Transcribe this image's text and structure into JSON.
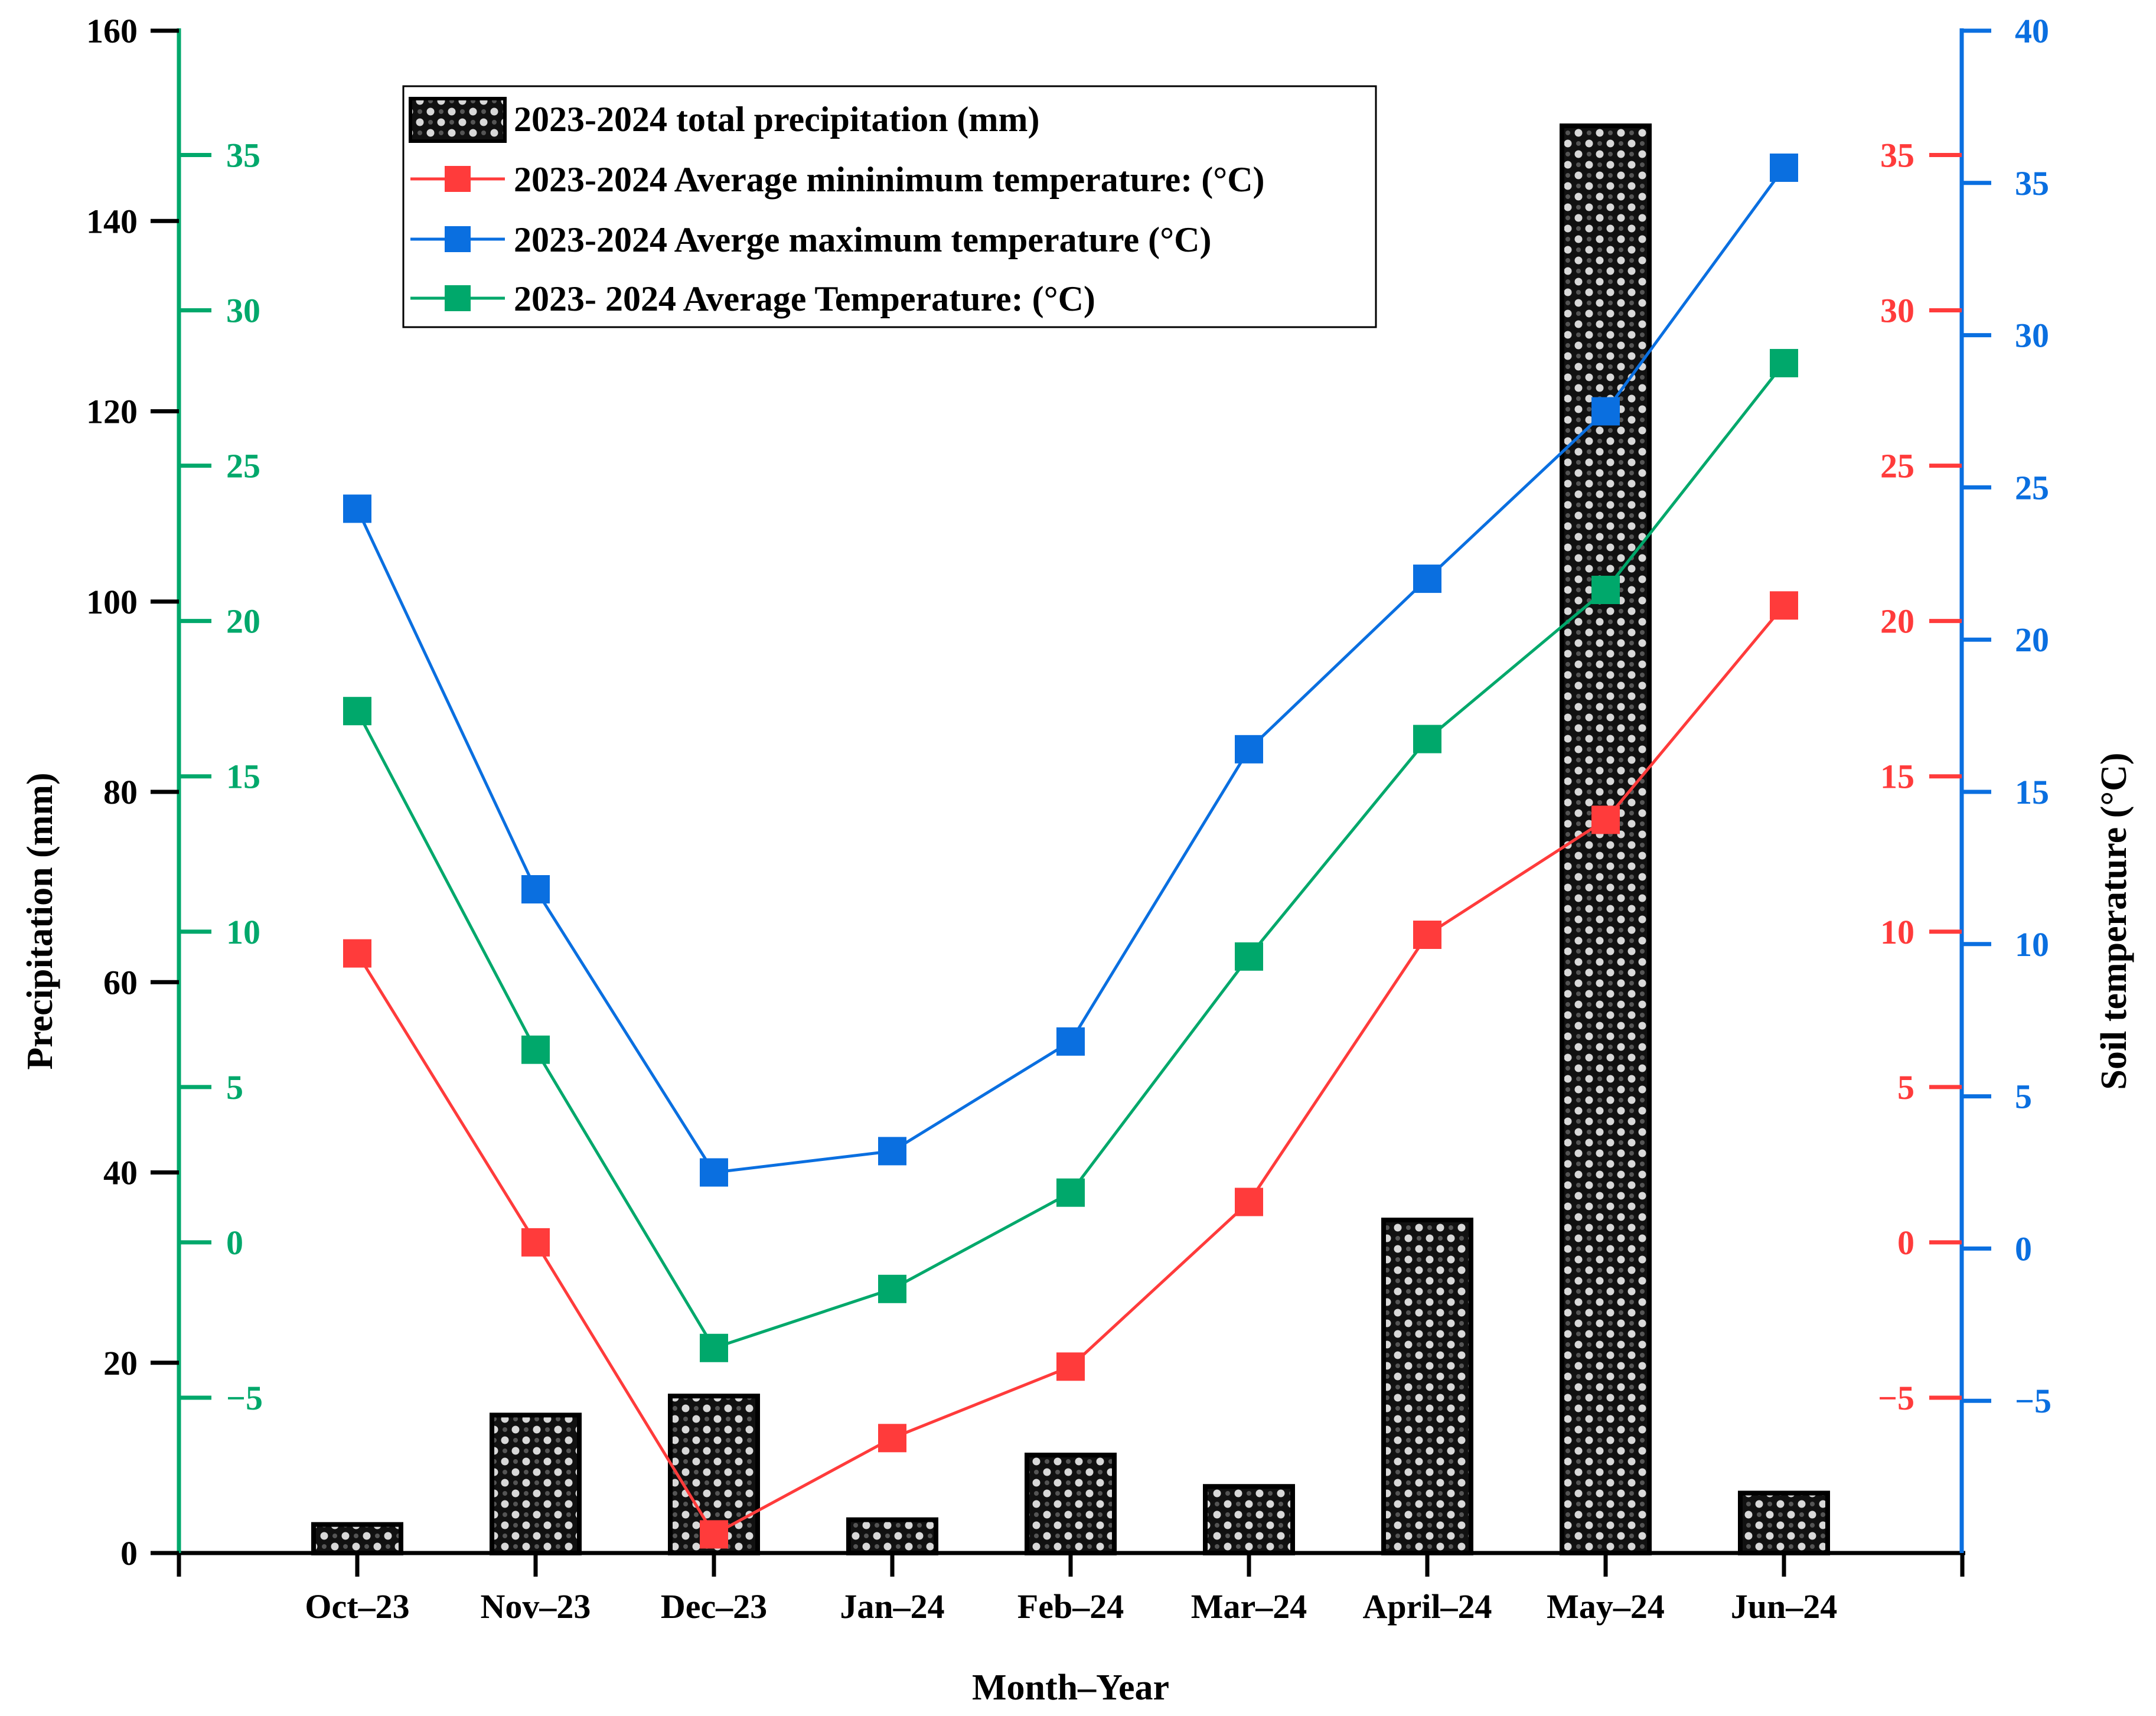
{
  "chart_data": {
    "type": "bar",
    "categories": [
      "Oct–23",
      "Nov–23",
      "Dec–23",
      "Jan–24",
      "Feb–24",
      "Mar–24",
      "April–24",
      "May–24",
      "Jun–24"
    ],
    "xlabel": "Month–Year",
    "ylabel_left": "Precipitation (mm)",
    "ylabel_right": "Soil temperature (°C)",
    "precip_axis": {
      "min": 0,
      "max": 160,
      "ticks": [
        "0",
        "20",
        "40",
        "60",
        "80",
        "100",
        "120",
        "140",
        "160"
      ],
      "color": "#000000"
    },
    "green_axis": {
      "min": -10,
      "max": 39,
      "ticks": [
        "−5",
        "0",
        "5",
        "10",
        "15",
        "20",
        "25",
        "30",
        "35"
      ],
      "tick_values": [
        -5,
        0,
        5,
        10,
        15,
        20,
        25,
        30,
        35
      ],
      "color": "#00a86b"
    },
    "red_axis": {
      "min": -10,
      "max": 39,
      "ticks": [
        "−5",
        "0",
        "5",
        "10",
        "15",
        "20",
        "25",
        "30",
        "35"
      ],
      "tick_values": [
        -5,
        0,
        5,
        10,
        15,
        20,
        25,
        30,
        35
      ],
      "color": "#ff3b3b"
    },
    "blue_axis": {
      "min": -10,
      "max": 40,
      "ticks": [
        "−5",
        "0",
        "5",
        "10",
        "15",
        "20",
        "25",
        "30",
        "35",
        "40"
      ],
      "tick_values": [
        -5,
        0,
        5,
        10,
        15,
        20,
        25,
        30,
        35,
        40
      ],
      "color": "#0a6fe0"
    },
    "bars": {
      "name": "2023-2024 total precipitation (mm)",
      "axis": "precip",
      "values": [
        3,
        14.5,
        16.5,
        3.5,
        10.3,
        7,
        35,
        150,
        6.3
      ]
    },
    "series": [
      {
        "name": "2023-2024 Average mininimum temperature: (°C)",
        "axis": "red",
        "color": "#ff3b3b",
        "values": [
          9.3,
          0,
          -9.4,
          -6.3,
          -4.0,
          1.3,
          9.9,
          13.6,
          20.5
        ]
      },
      {
        "name": "2023-2024 Averge maximum temperature (°C)",
        "axis": "blue",
        "color": "#0a6fe0",
        "values": [
          24.3,
          11.8,
          2.5,
          3.2,
          6.8,
          16.4,
          22,
          27.5,
          35.5
        ]
      },
      {
        "name": "2023- 2024 Average Temperature: (°C)",
        "axis": "green",
        "color": "#00a86b",
        "values": [
          17.1,
          6.2,
          -3.4,
          -1.5,
          1.6,
          9.2,
          16.2,
          21.0,
          28.3
        ]
      }
    ],
    "legend_position": "top-center"
  }
}
